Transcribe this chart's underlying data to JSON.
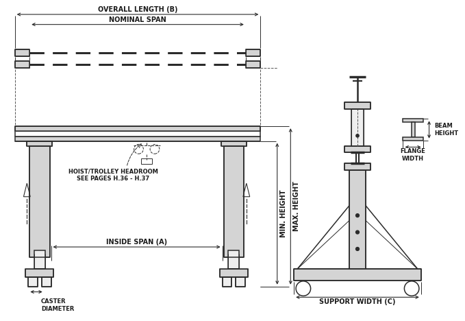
{
  "bg_color": "#ffffff",
  "line_color": "#2b2b2b",
  "text_color": "#1a1a1a",
  "font_family": "DejaVu Sans",
  "font_size_label": 7.0,
  "font_size_small": 6.0,
  "fig_width": 6.79,
  "fig_height": 4.68,
  "labels": {
    "overall_length": "OVERALL LENGTH (B)",
    "nominal_span": "NOMINAL SPAN",
    "inside_span": "INSIDE SPAN (A)",
    "caster_diameter": "CASTER\nDIAMETER",
    "hoist_trolley": "HOIST/TROLLEY HEADROOM\nSEE PAGES H.36 - H.37",
    "min_height": "MIN. HEIGHT",
    "max_height": "MAX. HEIGHT",
    "support_width": "SUPPORT WIDTH (C)",
    "beam_height": "BEAM\nHEIGHT",
    "flange_width": "FLANGE\nWIDTH"
  }
}
